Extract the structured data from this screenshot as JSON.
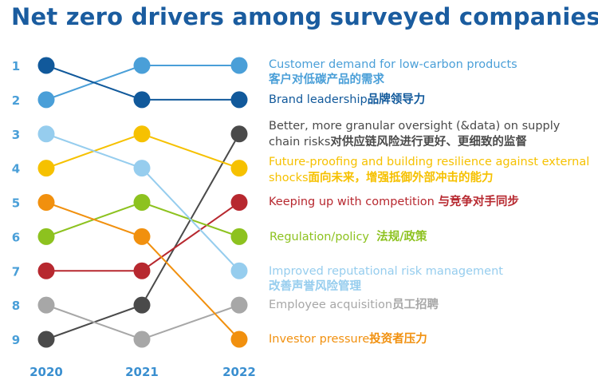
{
  "chart_data": {
    "type": "bump",
    "title": "Net zero drivers among surveyed companies",
    "x": [
      "2020",
      "2021",
      "2022"
    ],
    "y_ticks": [
      "1",
      "2",
      "3",
      "4",
      "5",
      "6",
      "7",
      "8",
      "9"
    ],
    "ylim": [
      1,
      9
    ],
    "y_inverted": true,
    "series": [
      {
        "name": "Customer demand for low-carbon products",
        "name_cn": "客户对低碳产品的需求",
        "color": "#4a9fd8",
        "values": [
          2,
          1,
          1
        ]
      },
      {
        "name": "Brand leadership",
        "name_cn": "品牌领导力",
        "color": "#11599b",
        "values": [
          1,
          2,
          2
        ]
      },
      {
        "name": "Better, more granular oversight (&data) on supply chain risks",
        "name_cn": "对供应链风险进行更好、更细致的监督",
        "color": "#4a4a4a",
        "values": [
          9,
          8,
          3
        ]
      },
      {
        "name": "Future-proofing and building resilience against external shocks",
        "name_cn": "面向未来，增强抵御外部冲击的能力",
        "color": "#f6c100",
        "values": [
          4,
          3,
          4
        ]
      },
      {
        "name": "Keeping up with competition ",
        "name_cn": "与竞争对手同步",
        "color": "#b7282f",
        "values": [
          7,
          7,
          5
        ]
      },
      {
        "name": "Regulation/policy  ",
        "name_cn": "法规/政策",
        "color": "#8dc21f",
        "values": [
          6,
          5,
          6
        ]
      },
      {
        "name": "Improved reputational risk management",
        "name_cn": "改善声誉风险管理",
        "color": "#96cdee",
        "values": [
          3,
          4,
          7
        ]
      },
      {
        "name": "Employee acquisition",
        "name_cn": "员工招聘",
        "color": "#a7a7a7",
        "values": [
          8,
          9,
          8
        ]
      },
      {
        "name": "Investor pressure",
        "name_cn": "投资者压力",
        "color": "#f1900e",
        "values": [
          5,
          6,
          9
        ]
      }
    ],
    "axis_color": "#4a9fd8",
    "year_color": "#3a8fd0"
  }
}
